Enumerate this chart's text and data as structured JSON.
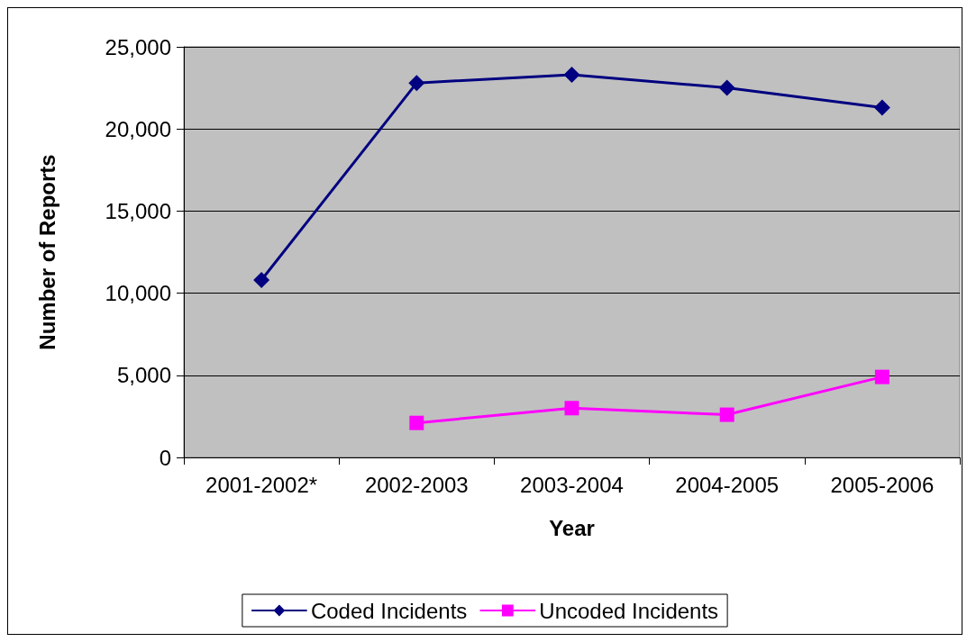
{
  "chart_data": {
    "type": "line",
    "xlabel": "Year",
    "ylabel": "Number of Reports",
    "categories": [
      "2001-2002*",
      "2002-2003",
      "2003-2004",
      "2004-2005",
      "2005-2006"
    ],
    "series": [
      {
        "name": "Coded Incidents",
        "color": "#000080",
        "marker": "diamond",
        "values": [
          10800,
          22800,
          23300,
          22500,
          21300
        ]
      },
      {
        "name": "Uncoded Incidents",
        "color": "#ff00ff",
        "marker": "square",
        "values": [
          null,
          2100,
          3000,
          2600,
          4900
        ]
      }
    ],
    "ylim": [
      0,
      25000
    ],
    "yticks": [
      0,
      {
        "value": 5000,
        "label": "5,000"
      },
      {
        "value": 10000,
        "label": "10,000"
      },
      {
        "value": 15000,
        "label": "15,000"
      },
      {
        "value": 20000,
        "label": "20,000"
      },
      {
        "value": 25000,
        "label": "25,000"
      }
    ],
    "grid": "y",
    "legend": "bottom",
    "line_style": "solid"
  }
}
